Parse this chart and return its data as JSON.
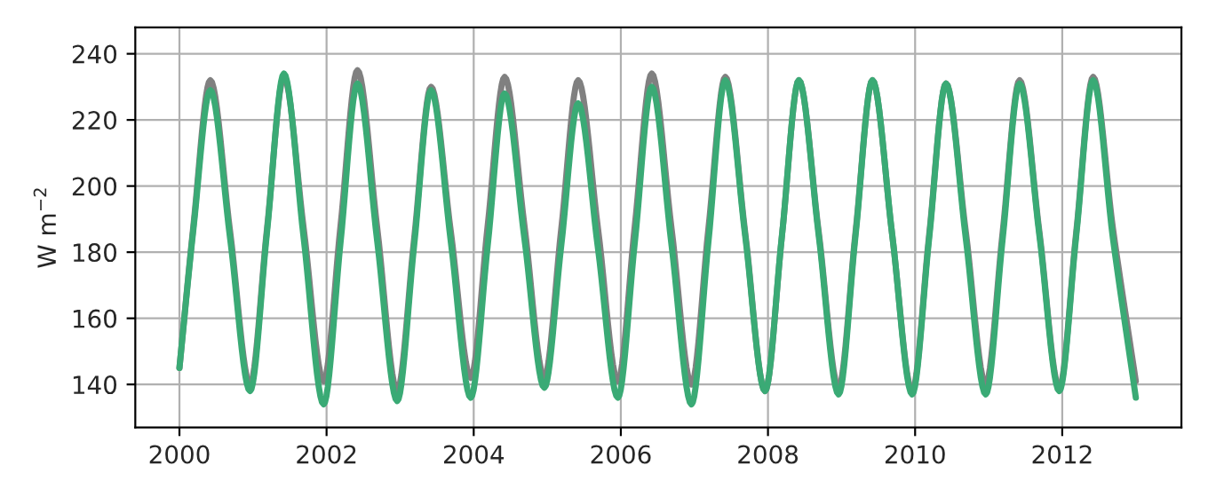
{
  "chart_data": {
    "type": "line",
    "ylabel": "W m$^{−2}$",
    "x": [
      2000.0,
      2000.19,
      2000.42,
      2000.69,
      2000.96,
      2001.19,
      2001.42,
      2001.69,
      2001.96,
      2002.19,
      2002.42,
      2002.69,
      2002.96,
      2003.19,
      2003.42,
      2003.69,
      2003.96,
      2004.19,
      2004.42,
      2004.69,
      2004.96,
      2005.19,
      2005.42,
      2005.69,
      2005.96,
      2006.19,
      2006.42,
      2006.69,
      2006.96,
      2007.19,
      2007.42,
      2007.69,
      2007.96,
      2008.19,
      2008.42,
      2008.69,
      2008.96,
      2009.19,
      2009.42,
      2009.69,
      2009.96,
      2010.19,
      2010.42,
      2010.69,
      2010.96,
      2011.19,
      2011.42,
      2011.69,
      2011.96,
      2012.19,
      2012.42,
      2012.69,
      2013.0
    ],
    "series": [
      {
        "color": "#808080",
        "values": [
          145,
          188,
          232,
          186,
          140,
          187,
          233,
          187,
          141,
          188,
          235,
          187,
          138,
          184,
          230,
          186,
          142,
          188,
          233,
          188,
          142,
          187,
          232,
          187,
          141,
          188,
          234,
          187,
          140,
          187,
          233,
          186,
          138,
          185,
          232,
          186,
          139,
          186,
          232,
          185,
          138,
          185,
          231,
          186,
          140,
          186,
          232,
          186,
          139,
          186,
          233,
          187,
          141
        ]
      },
      {
        "color": "#3aaa75",
        "values": [
          145,
          187,
          229,
          184,
          138,
          186,
          234,
          184,
          134,
          183,
          231,
          183,
          135,
          182,
          229,
          183,
          136,
          182,
          228,
          184,
          139,
          182,
          225,
          181,
          136,
          183,
          230,
          182,
          134,
          183,
          232,
          185,
          138,
          185,
          232,
          185,
          137,
          185,
          232,
          185,
          137,
          184,
          231,
          184,
          137,
          184,
          231,
          185,
          138,
          185,
          232,
          184,
          136
        ]
      }
    ],
    "xlim": [
      1999.4,
      2013.62
    ],
    "ylim": [
      127,
      248
    ],
    "xticks": [
      2000,
      2002,
      2004,
      2006,
      2008,
      2010,
      2012
    ],
    "yticks": [
      140,
      160,
      180,
      200,
      220,
      240
    ],
    "grid": true,
    "line_style": "solid"
  }
}
